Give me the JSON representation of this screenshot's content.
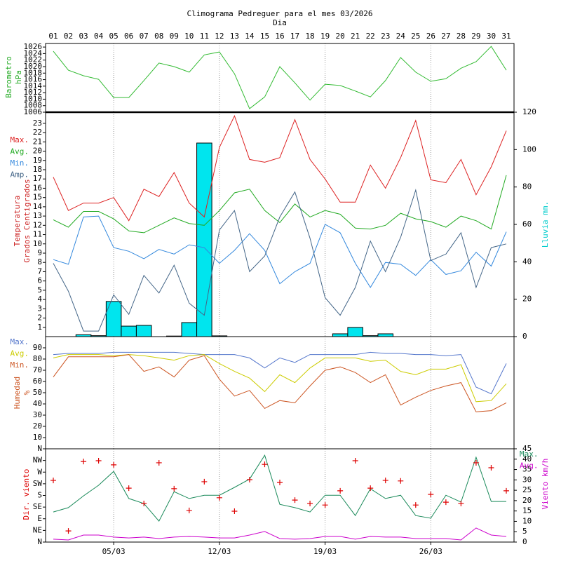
{
  "chart_data": [
    {
      "type": "line",
      "title": "Climograma Pedreguer para el mes 03/2026",
      "xlabel": "Dia",
      "categories": [
        "01",
        "02",
        "03",
        "04",
        "05",
        "06",
        "07",
        "08",
        "09",
        "10",
        "11",
        "12",
        "13",
        "14",
        "15",
        "16",
        "17",
        "18",
        "19",
        "20",
        "21",
        "22",
        "23",
        "24",
        "25",
        "26",
        "27",
        "28",
        "29",
        "30",
        "31"
      ],
      "ylabel": [
        "Barometro",
        "hPa"
      ],
      "ylabel_color": "#22aa22",
      "ylim": [
        1006,
        1027.1
      ],
      "yticks": [
        1006,
        1008,
        1010,
        1012,
        1014,
        1016,
        1018,
        1020,
        1022,
        1024,
        1026
      ],
      "series": [
        {
          "color": "#33bb33",
          "values": [
            1024.7,
            1018.9,
            1017.2,
            1016.1,
            1010.5,
            1010.5,
            1015.7,
            1021.1,
            1020,
            1018.3,
            1023.6,
            1024.5,
            1017.8,
            1007.1,
            1010.7,
            1020,
            1015,
            1009.7,
            1014.6,
            1014.2,
            1012.5,
            1010.7,
            1015.7,
            1022.8,
            1018.3,
            1015.5,
            1016.3,
            1019.5,
            1021.5,
            1026.2,
            1018.9
          ]
        }
      ]
    },
    {
      "type": "combo",
      "ylabel": [
        "Temperatura",
        "Grados Centigrados"
      ],
      "ylabel_color": "#cc2222",
      "y2label": "Lluvia mm.",
      "y2label_color": "#00cccc",
      "legend": "left",
      "ylim": [
        0,
        24.2
      ],
      "yticks": [
        1,
        2,
        3,
        4,
        5,
        6,
        7,
        8,
        9,
        10,
        11,
        12,
        13,
        14,
        15,
        16,
        17,
        18,
        19,
        20,
        21,
        22,
        23
      ],
      "y2lim": [
        0,
        120
      ],
      "y2ticks": [
        0,
        20,
        40,
        60,
        80,
        100,
        120
      ],
      "series": [
        {
          "type": "bar",
          "axis": "y2",
          "color": "#00e5ee",
          "values": [
            0,
            0,
            1,
            0.5,
            18.8,
            5.6,
            6,
            0,
            0.3,
            7.5,
            103.5,
            0.4,
            0,
            0,
            0,
            0,
            0,
            0,
            0,
            1.5,
            4.9,
            0.5,
            1.5,
            0,
            0,
            0,
            0,
            0,
            0,
            0,
            0
          ]
        },
        {
          "name": "Max.",
          "color": "#dd2222",
          "values": [
            17.2,
            13.6,
            14.4,
            14.4,
            15,
            12.5,
            15.9,
            15.1,
            17.7,
            14.4,
            12.9,
            20.4,
            23.8,
            19.1,
            18.8,
            19.3,
            23.4,
            19.1,
            17,
            14.5,
            14.5,
            18.5,
            16,
            19.3,
            23.3,
            16.9,
            16.6,
            19.1,
            15.3,
            18.3,
            22.2
          ]
        },
        {
          "name": "Avg.",
          "color": "#22aa22",
          "values": [
            12.6,
            11.8,
            13.5,
            13.5,
            12.7,
            11.4,
            11.2,
            12,
            12.8,
            12.2,
            12,
            13.6,
            15.5,
            15.9,
            13.6,
            12.3,
            14.3,
            12.9,
            13.6,
            13.2,
            11.7,
            11.6,
            12,
            13.3,
            12.7,
            12.4,
            11.8,
            13,
            12.5,
            11.6,
            17.4
          ]
        },
        {
          "name": "Min.",
          "color": "#3388dd",
          "values": [
            8.3,
            7.8,
            12.9,
            13,
            9.6,
            9.2,
            8.4,
            9.4,
            8.9,
            9.9,
            9.6,
            7.9,
            9.3,
            11.1,
            9.3,
            5.7,
            7,
            7.9,
            12.1,
            11.2,
            7.9,
            5.3,
            8,
            7.8,
            6.6,
            8.3,
            6.7,
            7.1,
            9.1,
            7.6,
            11.3
          ]
        },
        {
          "name": "Amp.",
          "color": "#446688",
          "values": [
            7.9,
            4.9,
            0.6,
            0.6,
            4.5,
            2.4,
            6.6,
            4.7,
            7.7,
            3.6,
            2.3,
            11.5,
            13.6,
            7,
            8.7,
            12.9,
            15.6,
            10.6,
            4.2,
            2.3,
            5.3,
            10.3,
            7,
            10.7,
            15.8,
            8.2,
            8.9,
            11.2,
            5.3,
            9.6,
            10
          ]
        }
      ]
    },
    {
      "type": "line",
      "ylabel": [
        "Humedad",
        "%"
      ],
      "ylabel_color": "#cc5522",
      "legend": "left",
      "ylim": [
        0,
        100
      ],
      "yticks": [
        10,
        20,
        30,
        40,
        50,
        60,
        70,
        80,
        90
      ],
      "series": [
        {
          "name": "Max.",
          "color": "#5577cc",
          "values": [
            84,
            85,
            85,
            85,
            86,
            86,
            86,
            86,
            86,
            85,
            84,
            84,
            84,
            81,
            72,
            81,
            77,
            84,
            84,
            84,
            84,
            86,
            85,
            85,
            84,
            84,
            83,
            84,
            55,
            49,
            76
          ]
        },
        {
          "name": "Avg.",
          "color": "#cccc00",
          "values": [
            81,
            84,
            84,
            84,
            83,
            84,
            83,
            81,
            79,
            83,
            84,
            76,
            69,
            63,
            51,
            66,
            59,
            72,
            81,
            81,
            81,
            78,
            79,
            69,
            66,
            71,
            71,
            75,
            42,
            43,
            58
          ]
        },
        {
          "name": "Min.",
          "color": "#cc5522",
          "values": [
            64,
            82,
            82,
            82,
            82,
            84,
            69,
            73,
            64,
            79,
            83,
            62,
            47,
            52,
            36,
            43,
            41,
            56,
            70,
            73,
            68,
            59,
            66,
            39,
            46,
            52,
            56,
            59,
            33,
            34,
            41
          ]
        }
      ]
    },
    {
      "type": "combo",
      "ylabel": [
        "Dir. viento"
      ],
      "ylabel_color": "#dd0000",
      "y2label": "Viento km/h",
      "y2label_color": "#cc00cc",
      "legend": "right",
      "ylim": [
        0,
        360
      ],
      "yticks": [
        {
          "value": 0,
          "label": "N"
        },
        {
          "value": 45,
          "label": "NE"
        },
        {
          "value": 90,
          "label": "E"
        },
        {
          "value": 135,
          "label": "SE"
        },
        {
          "value": 180,
          "label": "S"
        },
        {
          "value": 225,
          "label": "SW"
        },
        {
          "value": 270,
          "label": "W"
        },
        {
          "value": 315,
          "label": "NW"
        },
        {
          "value": 360,
          "label": "N"
        }
      ],
      "y2lim": [
        0,
        45
      ],
      "y2ticks": [
        0,
        5,
        10,
        15,
        20,
        25,
        30,
        35,
        40,
        45
      ],
      "xticks": [
        {
          "value": 5,
          "label": "05/03"
        },
        {
          "value": 12,
          "label": "12/03"
        },
        {
          "value": 19,
          "label": "19/03"
        },
        {
          "value": 26,
          "label": "26/03"
        }
      ],
      "series": [
        {
          "name": "Max.",
          "axis": "y2",
          "color": "#1a8a5a",
          "values": [
            14.5,
            16.6,
            22.3,
            27.4,
            34.1,
            21,
            18.6,
            10.1,
            24.3,
            21,
            22.6,
            22.6,
            26.4,
            30.4,
            41.9,
            18.2,
            16.6,
            14.5,
            22.6,
            22.6,
            12.8,
            25.7,
            21,
            22.6,
            12.8,
            11.5,
            22.6,
            19.3,
            40.9,
            19.6,
            19.6
          ]
        },
        {
          "name": "Avg.",
          "axis": "y2",
          "color": "#cc00cc",
          "values": [
            1.4,
            1,
            3.4,
            3.4,
            2.4,
            2,
            2.4,
            1.7,
            2.4,
            2.7,
            2.4,
            2,
            2,
            3.4,
            5.1,
            1.7,
            1.4,
            1.7,
            2.7,
            2.7,
            1.4,
            2.7,
            2.4,
            2.4,
            1.7,
            1.7,
            1.7,
            1,
            6.8,
            3.4,
            2.7
          ]
        },
        {
          "type": "scatter",
          "color": "#dd0000",
          "values": [
            238,
            43,
            311,
            314,
            298,
            208,
            149,
            306,
            206,
            122,
            233,
            171,
            119,
            241,
            300,
            230,
            162,
            149,
            143,
            198,
            314,
            208,
            238,
            236,
            143,
            184,
            154,
            149,
            306,
            287,
            198
          ]
        }
      ]
    }
  ]
}
